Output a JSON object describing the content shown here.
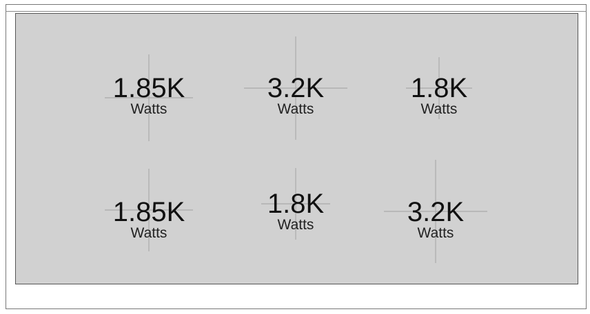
{
  "cooktop": {
    "burners": [
      {
        "value": "1.85K",
        "unit": "Watts"
      },
      {
        "value": "3.2K",
        "unit": "Watts"
      },
      {
        "value": "1.8K",
        "unit": "Watts"
      },
      {
        "value": "1.85K",
        "unit": "Watts"
      },
      {
        "value": "1.8K",
        "unit": "Watts"
      },
      {
        "value": "3.2K",
        "unit": "Watts"
      }
    ],
    "colors": {
      "panel": "#d1d1d1",
      "crosshair": "#aaaaaa",
      "text": "#111111"
    }
  }
}
